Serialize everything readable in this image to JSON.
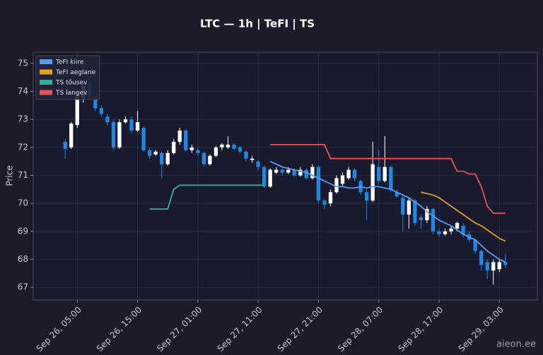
{
  "chart_data": {
    "type": "candlestick",
    "title": "LTC — 1h  |  TeFI  |  TS",
    "y_label": "Price",
    "watermark": "aieon.ee",
    "x": [
      "Sep 26, 03:00",
      "Sep 26, 04:00",
      "Sep 26, 05:00",
      "Sep 26, 06:00",
      "Sep 26, 07:00",
      "Sep 26, 08:00",
      "Sep 26, 09:00",
      "Sep 26, 10:00",
      "Sep 26, 11:00",
      "Sep 26, 12:00",
      "Sep 26, 13:00",
      "Sep 26, 14:00",
      "Sep 26, 15:00",
      "Sep 26, 16:00",
      "Sep 26, 17:00",
      "Sep 26, 18:00",
      "Sep 26, 19:00",
      "Sep 26, 20:00",
      "Sep 26, 21:00",
      "Sep 26, 22:00",
      "Sep 26, 23:00",
      "Sep 27, 00:00",
      "Sep 27, 01:00",
      "Sep 27, 02:00",
      "Sep 27, 03:00",
      "Sep 27, 04:00",
      "Sep 27, 05:00",
      "Sep 27, 06:00",
      "Sep 27, 07:00",
      "Sep 27, 08:00",
      "Sep 27, 09:00",
      "Sep 27, 10:00",
      "Sep 27, 11:00",
      "Sep 27, 12:00",
      "Sep 27, 13:00",
      "Sep 27, 14:00",
      "Sep 27, 15:00",
      "Sep 27, 16:00",
      "Sep 27, 17:00",
      "Sep 27, 18:00",
      "Sep 27, 19:00",
      "Sep 27, 20:00",
      "Sep 27, 21:00",
      "Sep 27, 22:00",
      "Sep 27, 23:00",
      "Sep 28, 00:00",
      "Sep 28, 01:00",
      "Sep 28, 02:00",
      "Sep 28, 03:00",
      "Sep 28, 04:00",
      "Sep 28, 05:00",
      "Sep 28, 06:00",
      "Sep 28, 07:00",
      "Sep 28, 08:00",
      "Sep 28, 09:00",
      "Sep 28, 10:00",
      "Sep 28, 11:00",
      "Sep 28, 12:00",
      "Sep 28, 13:00",
      "Sep 28, 14:00",
      "Sep 28, 15:00",
      "Sep 28, 16:00",
      "Sep 28, 17:00",
      "Sep 28, 18:00",
      "Sep 28, 19:00",
      "Sep 28, 20:00",
      "Sep 28, 21:00",
      "Sep 28, 22:00",
      "Sep 28, 23:00",
      "Sep 29, 00:00",
      "Sep 29, 01:00",
      "Sep 29, 02:00",
      "Sep 29, 03:00",
      "Sep 29, 04:00"
    ],
    "open": [
      72.2,
      72.0,
      72.8,
      73.75,
      74.3,
      73.8,
      73.4,
      73.1,
      72.9,
      72.0,
      72.9,
      73.0,
      72.6,
      72.7,
      71.9,
      71.75,
      71.8,
      71.4,
      71.8,
      72.2,
      72.6,
      71.9,
      71.9,
      71.8,
      71.4,
      71.7,
      72.0,
      72.0,
      72.1,
      72.0,
      71.85,
      71.55,
      71.5,
      71.3,
      70.6,
      71.1,
      71.2,
      71.1,
      71.2,
      71.0,
      71.2,
      70.9,
      71.3,
      70.1,
      70.0,
      70.4,
      70.7,
      70.9,
      71.2,
      70.8,
      70.4,
      70.1,
      71.3,
      70.8,
      71.3,
      70.4,
      70.2,
      69.6,
      70.1,
      69.5,
      69.4,
      69.8,
      69.0,
      68.9,
      69.0,
      69.1,
      69.2,
      68.9,
      68.7,
      68.3,
      67.9,
      67.6,
      67.65,
      67.9
    ],
    "high": [
      72.3,
      72.9,
      74.0,
      74.3,
      74.5,
      73.9,
      73.5,
      73.2,
      73.0,
      73.0,
      73.1,
      73.1,
      73.3,
      72.75,
      72.0,
      71.9,
      71.85,
      71.9,
      72.3,
      72.7,
      72.65,
      72.1,
      72.0,
      71.85,
      71.75,
      72.05,
      72.15,
      72.4,
      72.15,
      72.05,
      71.9,
      71.7,
      71.55,
      71.35,
      71.25,
      71.3,
      71.25,
      71.3,
      71.25,
      71.3,
      71.25,
      71.4,
      71.35,
      70.15,
      70.5,
      71.0,
      71.1,
      71.3,
      71.25,
      70.85,
      70.5,
      72.2,
      71.9,
      72.4,
      71.35,
      70.5,
      70.3,
      70.2,
      70.15,
      69.6,
      69.9,
      69.85,
      69.1,
      69.1,
      69.2,
      69.35,
      69.3,
      69.0,
      68.75,
      68.35,
      68.0,
      68.0,
      68.0,
      68.2
    ],
    "low": [
      71.6,
      71.95,
      72.7,
      73.6,
      73.7,
      73.3,
      73.1,
      72.8,
      71.9,
      71.95,
      72.85,
      72.5,
      72.55,
      71.85,
      71.6,
      71.7,
      70.9,
      71.35,
      71.75,
      72.1,
      71.85,
      71.8,
      71.7,
      71.3,
      71.35,
      71.65,
      71.9,
      71.95,
      71.9,
      71.8,
      71.5,
      71.45,
      71.2,
      70.55,
      70.55,
      71.05,
      71.0,
      71.05,
      70.95,
      70.95,
      70.85,
      70.85,
      70.0,
      69.8,
      69.9,
      70.35,
      70.6,
      70.85,
      70.8,
      70.3,
      69.4,
      70.05,
      70.7,
      70.75,
      70.4,
      70.2,
      69.0,
      69.1,
      69.2,
      69.1,
      69.3,
      68.9,
      68.8,
      68.85,
      68.9,
      69.0,
      68.8,
      68.6,
      68.2,
      67.6,
      67.3,
      67.1,
      67.55,
      67.7
    ],
    "close": [
      71.95,
      72.85,
      73.8,
      74.2,
      73.8,
      73.4,
      73.2,
      72.9,
      72.0,
      72.9,
      73.0,
      72.6,
      72.9,
      71.9,
      71.7,
      71.85,
      71.4,
      71.8,
      72.2,
      72.6,
      71.9,
      72.0,
      71.8,
      71.4,
      71.7,
      72.0,
      72.1,
      72.1,
      71.95,
      71.85,
      71.6,
      71.6,
      71.3,
      70.6,
      71.2,
      71.2,
      71.1,
      71.2,
      71.0,
      71.2,
      70.9,
      71.3,
      70.1,
      69.95,
      70.4,
      70.9,
      71.0,
      71.2,
      70.9,
      70.4,
      70.1,
      71.4,
      70.8,
      71.3,
      70.5,
      70.25,
      69.6,
      70.1,
      69.3,
      69.4,
      69.8,
      69.0,
      68.9,
      69.0,
      69.1,
      69.3,
      68.9,
      68.7,
      68.3,
      67.8,
      67.6,
      67.9,
      67.9,
      67.8
    ],
    "up_color": "#ffffff",
    "down_color": "#1e88e5",
    "series": [
      {
        "name": "TeFI kiire",
        "color": "#5b9cf0",
        "values": [
          null,
          null,
          null,
          null,
          null,
          null,
          null,
          null,
          null,
          null,
          null,
          null,
          null,
          null,
          null,
          null,
          null,
          null,
          null,
          null,
          null,
          null,
          null,
          null,
          null,
          null,
          null,
          null,
          null,
          null,
          null,
          null,
          null,
          null,
          71.5,
          71.4,
          71.3,
          71.25,
          71.2,
          71.15,
          71.1,
          71.0,
          70.9,
          70.8,
          70.7,
          70.6,
          70.6,
          70.55,
          70.55,
          70.6,
          70.55,
          70.6,
          70.6,
          70.55,
          70.5,
          70.4,
          70.3,
          70.2,
          70.05,
          69.9,
          69.7,
          69.55,
          69.4,
          69.3,
          69.2,
          69.05,
          68.9,
          68.8,
          68.7,
          68.5,
          68.3,
          68.15,
          68.0,
          67.9
        ]
      },
      {
        "name": "TeFI aeglane",
        "color": "#e0a020",
        "values": [
          null,
          null,
          null,
          null,
          null,
          null,
          null,
          null,
          null,
          null,
          null,
          null,
          null,
          null,
          null,
          null,
          null,
          null,
          null,
          null,
          null,
          null,
          null,
          null,
          null,
          null,
          null,
          null,
          null,
          null,
          null,
          null,
          null,
          null,
          null,
          null,
          null,
          null,
          null,
          null,
          null,
          null,
          null,
          null,
          null,
          null,
          null,
          null,
          null,
          null,
          null,
          null,
          null,
          null,
          null,
          null,
          null,
          null,
          null,
          70.4,
          70.35,
          70.3,
          70.2,
          70.05,
          69.9,
          69.75,
          69.6,
          69.45,
          69.3,
          69.2,
          69.05,
          68.9,
          68.75,
          68.65
        ]
      },
      {
        "name": "TS tõusev",
        "color": "#2bb59a",
        "values": [
          null,
          null,
          null,
          null,
          null,
          null,
          null,
          null,
          null,
          null,
          null,
          null,
          null,
          null,
          69.8,
          69.8,
          69.8,
          69.8,
          70.5,
          70.65,
          70.65,
          70.65,
          70.65,
          70.65,
          70.65,
          70.65,
          70.65,
          70.65,
          70.65,
          70.65,
          70.65,
          70.65,
          70.65,
          70.65,
          null,
          null,
          null,
          null,
          null,
          null,
          null,
          null,
          null,
          null,
          null,
          null,
          null,
          null,
          null,
          null,
          null,
          null,
          null,
          null,
          null,
          null,
          null,
          null,
          null,
          null,
          null,
          null,
          null,
          null,
          null,
          null,
          null,
          null,
          null,
          null,
          null,
          null,
          null,
          null
        ]
      },
      {
        "name": "TS langev",
        "color": "#e05555",
        "values": [
          null,
          null,
          null,
          null,
          null,
          null,
          null,
          null,
          null,
          null,
          null,
          null,
          null,
          null,
          null,
          null,
          null,
          null,
          null,
          null,
          null,
          null,
          null,
          null,
          null,
          null,
          null,
          null,
          null,
          null,
          null,
          null,
          null,
          null,
          72.1,
          72.1,
          72.1,
          72.1,
          72.1,
          72.1,
          72.1,
          72.1,
          72.1,
          72.1,
          71.6,
          71.6,
          71.6,
          71.6,
          71.6,
          71.6,
          71.6,
          71.6,
          71.6,
          71.6,
          71.6,
          71.6,
          71.6,
          71.6,
          71.6,
          71.6,
          71.6,
          71.6,
          71.6,
          71.6,
          71.6,
          71.15,
          71.15,
          71.05,
          71.05,
          70.6,
          69.9,
          69.65,
          69.65,
          69.65
        ]
      }
    ],
    "ylim": [
      66.55,
      75.4
    ],
    "yticks": [
      67,
      68,
      69,
      70,
      71,
      72,
      73,
      74,
      75
    ],
    "xticks": [
      "Sep 26, 05:00",
      "Sep 26, 15:00",
      "Sep 27, 01:00",
      "Sep 27, 11:00",
      "Sep 27, 21:00",
      "Sep 28, 07:00",
      "Sep 28, 17:00",
      "Sep 29, 03:00"
    ],
    "grid": true,
    "legend": "upper left"
  }
}
